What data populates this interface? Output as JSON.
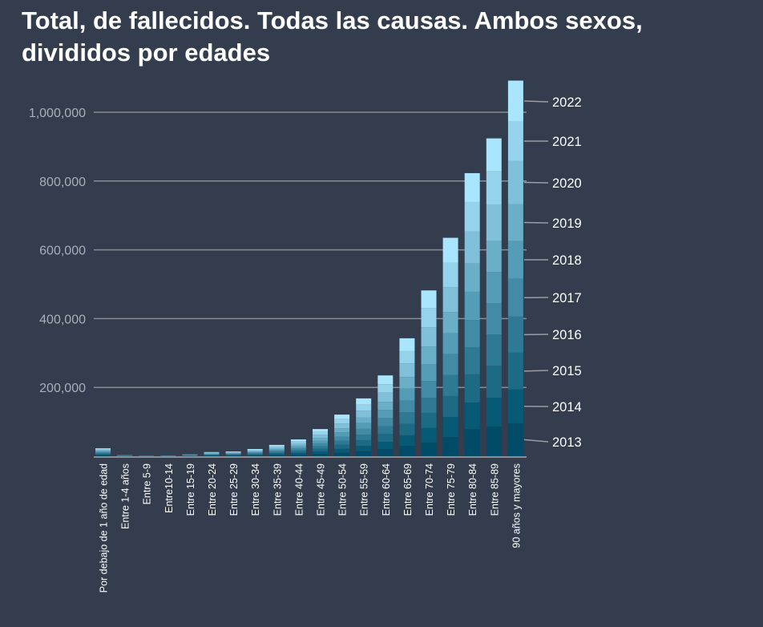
{
  "title": "Total, de fallecidos. Todas las causas. Ambos sexos, divididos por edades",
  "chart_data": {
    "type": "bar",
    "stacked": true,
    "title": "Total, de fallecidos. Todas las causas. Ambos sexos, divididos por edades",
    "xlabel": "",
    "ylabel": "",
    "ylim": [
      0,
      1100000
    ],
    "yticks": [
      200000,
      400000,
      600000,
      800000,
      1000000
    ],
    "ytick_labels": [
      "200,000",
      "400,000",
      "600,000",
      "800,000",
      "1,000,000"
    ],
    "grid": true,
    "legend_placement": "right",
    "categories": [
      "Por debajo de 1 año de edad",
      "Entre 1-4 años",
      "Entre 5-9",
      "Entre10-14",
      "Entre 15-19",
      "Entre 20-24",
      "Entre 25-29",
      "Entre 30-34",
      "Entre 35-39",
      "Entre 40-44",
      "Entre 45-49",
      "Entre 50-54",
      "Entre 55-59",
      "Entre 60-64",
      "Entre 65-69",
      "Entre 70-74",
      "Entre 75-79",
      "Entre 80-84",
      "Entre 85-89",
      "90 años y mayores"
    ],
    "series": [
      {
        "name": "2013",
        "color": "#004b68",
        "values": [
          2300,
          300,
          150,
          200,
          500,
          1100,
          1200,
          1800,
          2900,
          4300,
          7000,
          10600,
          14800,
          20700,
          30200,
          40000,
          56000,
          79000,
          86000,
          96000
        ]
      },
      {
        "name": "2014",
        "color": "#075a75",
        "values": [
          2300,
          300,
          150,
          200,
          500,
          1100,
          1300,
          1900,
          3000,
          4400,
          7100,
          10900,
          15100,
          21200,
          30900,
          42000,
          58000,
          77000,
          84000,
          98000
        ]
      },
      {
        "name": "2015",
        "color": "#1d6a85",
        "values": [
          2300,
          300,
          150,
          200,
          500,
          1200,
          1400,
          2100,
          3200,
          4800,
          7700,
          11900,
          16500,
          23000,
          33600,
          44000,
          61000,
          82000,
          93000,
          107000
        ]
      },
      {
        "name": "2016",
        "color": "#2e7a94",
        "values": [
          2300,
          300,
          150,
          200,
          500,
          1200,
          1300,
          2000,
          3200,
          4700,
          7600,
          11600,
          16100,
          22600,
          32900,
          44000,
          61000,
          79000,
          91000,
          105000
        ]
      },
      {
        "name": "2017",
        "color": "#428aa6",
        "values": [
          2300,
          300,
          150,
          200,
          500,
          1200,
          1400,
          2100,
          3300,
          4900,
          8000,
          12200,
          17000,
          23700,
          34600,
          49000,
          61000,
          79000,
          91000,
          110000
        ]
      },
      {
        "name": "2018",
        "color": "#559cb6",
        "values": [
          2300,
          300,
          150,
          200,
          500,
          1200,
          1400,
          2100,
          3300,
          4900,
          8000,
          12200,
          17000,
          23700,
          34600,
          49000,
          61000,
          82000,
          91000,
          110000
        ]
      },
      {
        "name": "2019",
        "color": "#6aaec8",
        "values": [
          2300,
          300,
          150,
          200,
          500,
          1200,
          1400,
          2100,
          3200,
          4800,
          7700,
          11900,
          16500,
          23000,
          33600,
          51000,
          61000,
          82000,
          91000,
          107000
        ]
      },
      {
        "name": "2020",
        "color": "#80c0da",
        "values": [
          2300,
          300,
          150,
          200,
          500,
          1400,
          1600,
          2400,
          3800,
          5600,
          9100,
          13900,
          19300,
          27000,
          39400,
          56000,
          72000,
          93000,
          105000,
          126000
        ]
      },
      {
        "name": "2021",
        "color": "#95d2eb",
        "values": [
          2300,
          300,
          150,
          200,
          500,
          1200,
          1500,
          2200,
          3400,
          5100,
          8200,
          12600,
          17500,
          24400,
          35700,
          56000,
          72000,
          86000,
          96000,
          114000
        ]
      },
      {
        "name": "2022",
        "color": "#a9e5fd",
        "values": [
          2300,
          300,
          150,
          200,
          500,
          1300,
          1500,
          2300,
          3600,
          5300,
          8600,
          13200,
          18300,
          25600,
          37400,
          51000,
          72000,
          84000,
          96000,
          119000
        ]
      }
    ]
  }
}
